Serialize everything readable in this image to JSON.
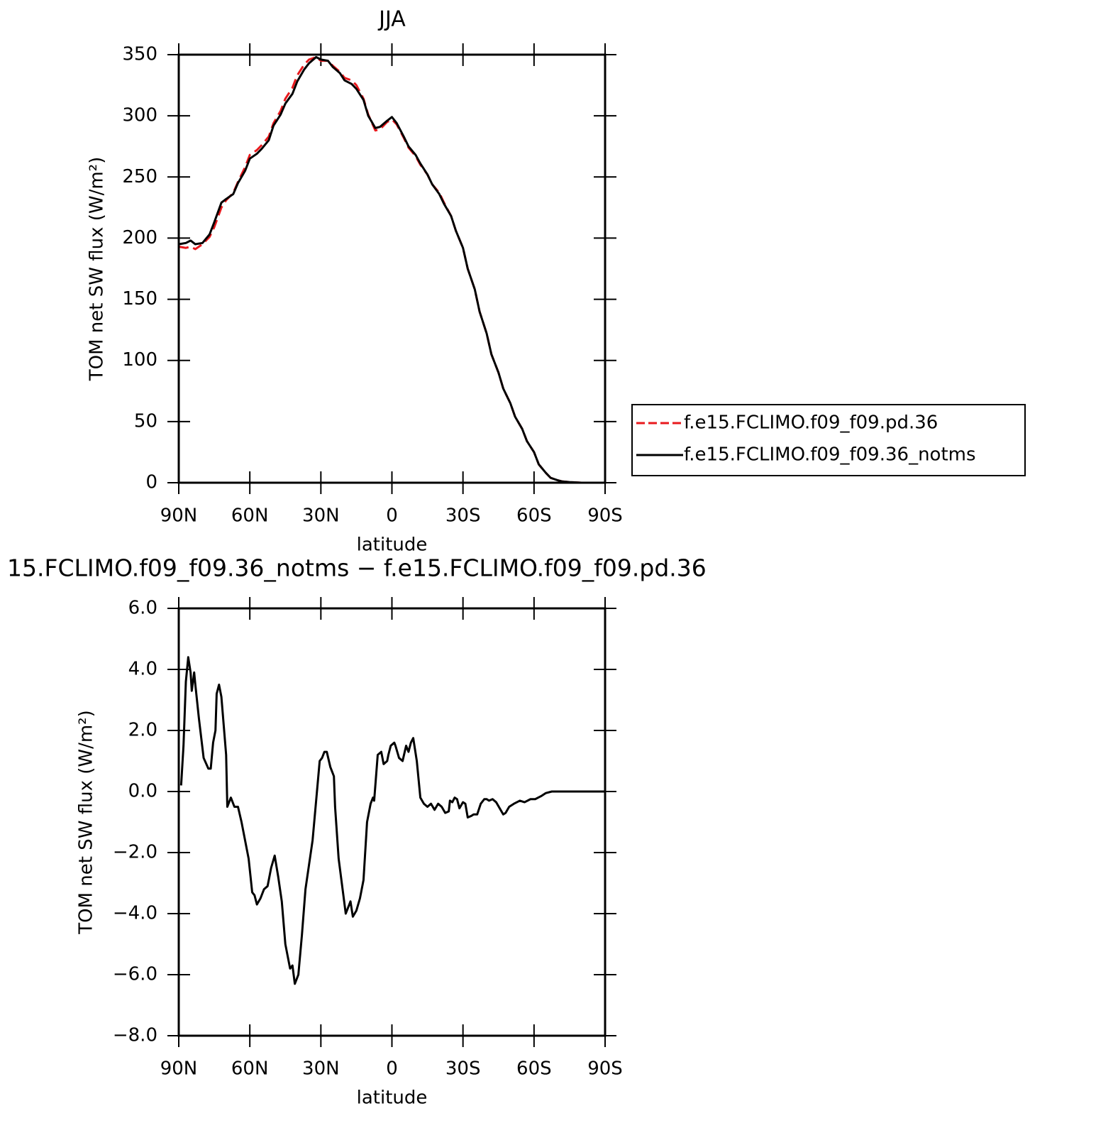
{
  "chart_data": [
    {
      "type": "line",
      "title": "JJA",
      "xlabel": "latitude",
      "ylabel": "TOM net SW flux (W/m²)",
      "xlim": [
        90,
        -90
      ],
      "xticks": [
        {
          "value": 90,
          "label": "90N"
        },
        {
          "value": 60,
          "label": "60N"
        },
        {
          "value": 30,
          "label": "30N"
        },
        0,
        {
          "value": -30,
          "label": "30S"
        },
        {
          "value": -60,
          "label": "60S"
        },
        {
          "value": -90,
          "label": "90S"
        }
      ],
      "ylim": [
        0,
        350
      ],
      "yticks": [
        0,
        50,
        100,
        150,
        200,
        250,
        300,
        350
      ],
      "legend": "right",
      "x": [
        90,
        87,
        85,
        83,
        80,
        77,
        75,
        72,
        70,
        67,
        65,
        62,
        60,
        57,
        55,
        52,
        50,
        47,
        45,
        42,
        40,
        37,
        35,
        32,
        30,
        27,
        25,
        22,
        20,
        17,
        15,
        12,
        10,
        7,
        5,
        2,
        0,
        -2,
        -5,
        -7,
        -10,
        -12,
        -15,
        -17,
        -20,
        -22,
        -25,
        -27,
        -30,
        -32,
        -35,
        -37,
        -40,
        -42,
        -45,
        -47,
        -50,
        -52,
        -55,
        -57,
        -60,
        -62,
        -65,
        -67,
        -70,
        -72,
        -75,
        -80,
        -85,
        -90
      ],
      "series": [
        {
          "name": "f.e15.FCLIMO.f09_f09.pd.36",
          "color": "#e8191d",
          "line_style": "dashed",
          "values": [
            193,
            192,
            193,
            191,
            195,
            201,
            209,
            225,
            231,
            237,
            246,
            258,
            268,
            272,
            276,
            283,
            294,
            304,
            314,
            323,
            333,
            342,
            346,
            348,
            345,
            345,
            341,
            336,
            331,
            329,
            325,
            314,
            301,
            288,
            289,
            295,
            297,
            293,
            282,
            274,
            267,
            260,
            252,
            244,
            237,
            229,
            218,
            206,
            192,
            175,
            158,
            140,
            122,
            105,
            90,
            77,
            65,
            54,
            44,
            34,
            25,
            15,
            8,
            4,
            2,
            1,
            0.5,
            0,
            0,
            0
          ]
        },
        {
          "name": "f.e15.FCLIMO.f09_f09.36_notms",
          "color": "#000000",
          "line_style": "solid",
          "values": [
            195,
            196,
            198,
            195,
            196,
            203,
            213,
            229,
            232,
            236,
            245,
            255,
            265,
            269,
            273,
            280,
            292,
            301,
            310,
            318,
            328,
            338,
            343,
            348,
            346,
            345,
            340,
            335,
            329,
            326,
            322,
            313,
            300,
            290,
            291,
            296,
            299,
            294,
            283,
            275,
            268,
            261,
            252,
            244,
            236,
            228,
            218,
            206,
            192,
            175,
            158,
            140,
            122,
            105,
            90,
            77,
            65,
            54,
            44,
            34,
            25,
            15,
            8,
            4,
            2,
            1,
            0.5,
            0,
            0,
            0
          ]
        }
      ]
    },
    {
      "type": "line",
      "title": "15.FCLIMO.f09_f09.36_notms − f.e15.FCLIMO.f09_f09.pd.36",
      "xlabel": "latitude",
      "ylabel": "TOM net SW flux (W/m²)",
      "xlim": [
        90,
        -90
      ],
      "xticks": [
        {
          "value": 90,
          "label": "90N"
        },
        {
          "value": 60,
          "label": "60N"
        },
        {
          "value": 30,
          "label": "30N"
        },
        0,
        {
          "value": -30,
          "label": "30S"
        },
        {
          "value": -60,
          "label": "60S"
        },
        {
          "value": -90,
          "label": "90S"
        }
      ],
      "ylim": [
        -8,
        6
      ],
      "yticks": [
        {
          "value": -8,
          "label": "−8.0"
        },
        {
          "value": -6,
          "label": "−6.0"
        },
        {
          "value": -4,
          "label": "−4.0"
        },
        {
          "value": -2,
          "label": "−2.0"
        },
        {
          "value": 0,
          "label": "0.0"
        },
        {
          "value": 2,
          "label": "2.0"
        },
        {
          "value": 4,
          "label": "4.0"
        },
        {
          "value": 6,
          "label": "6.0"
        }
      ],
      "x": [
        89,
        88,
        87,
        86,
        85,
        84.5,
        83.5,
        83,
        81.5,
        79.5,
        77.5,
        76.5,
        75.5,
        74.5,
        74,
        73,
        72,
        70,
        69.5,
        68,
        66.5,
        65,
        63.5,
        62,
        60.5,
        59,
        58,
        57,
        55.5,
        54,
        52.5,
        51,
        49.5,
        48,
        46.5,
        45,
        43,
        42,
        41,
        39.5,
        38,
        36.5,
        35,
        33.5,
        32,
        30.5,
        29.5,
        28.5,
        27.5,
        26,
        24.5,
        24,
        22.5,
        20,
        19.5,
        18.5,
        17.5,
        16.5,
        15,
        13.5,
        12,
        10.5,
        9,
        8,
        7.5,
        6.5,
        6,
        4.5,
        3.5,
        2,
        1.5,
        0.5,
        -1,
        -1.5,
        -3,
        -4.5,
        -6,
        -7,
        -8,
        -9,
        -10.5,
        -12,
        -13.5,
        -15,
        -16.5,
        -18,
        -19.5,
        -21,
        -22.5,
        -24,
        -24.5,
        -25.5,
        -26.5,
        -27.5,
        -28.5,
        -30,
        -31,
        -32,
        -33.5,
        -34.5,
        -36,
        -37.5,
        -39,
        -40,
        -41,
        -42.5,
        -44,
        -45.5,
        -47,
        -48,
        -49.5,
        -51.5,
        -54,
        -56,
        -58.5,
        -60.5,
        -63,
        -65,
        -67.5,
        -75,
        -85,
        -90
      ],
      "series": [
        {
          "color": "#000000",
          "line_style": "solid",
          "values": [
            0.2,
            1.5,
            3.6,
            4.4,
            3.9,
            3.3,
            3.9,
            3.5,
            2.4,
            1.1,
            0.75,
            0.75,
            1.6,
            2.0,
            3.2,
            3.5,
            3.1,
            1.2,
            -0.5,
            -0.2,
            -0.5,
            -0.5,
            -1.0,
            -1.6,
            -2.2,
            -3.3,
            -3.4,
            -3.7,
            -3.5,
            -3.2,
            -3.1,
            -2.5,
            -2.1,
            -2.8,
            -3.6,
            -5.0,
            -5.8,
            -5.7,
            -6.3,
            -6.0,
            -4.7,
            -3.2,
            -2.4,
            -1.6,
            -0.3,
            1.0,
            1.1,
            1.3,
            1.3,
            0.8,
            0.5,
            -0.5,
            -2.2,
            -3.7,
            -4.0,
            -3.8,
            -3.6,
            -4.1,
            -3.9,
            -3.5,
            -2.9,
            -1.0,
            -0.4,
            -0.2,
            -0.3,
            0.7,
            1.2,
            1.3,
            0.9,
            1.0,
            1.2,
            1.5,
            1.6,
            1.5,
            1.1,
            1.0,
            1.5,
            1.3,
            1.6,
            1.75,
            1.0,
            -0.2,
            -0.4,
            -0.5,
            -0.4,
            -0.6,
            -0.4,
            -0.5,
            -0.7,
            -0.65,
            -0.3,
            -0.35,
            -0.2,
            -0.25,
            -0.55,
            -0.35,
            -0.4,
            -0.85,
            -0.8,
            -0.75,
            -0.75,
            -0.4,
            -0.25,
            -0.25,
            -0.3,
            -0.25,
            -0.35,
            -0.55,
            -0.75,
            -0.7,
            -0.5,
            -0.4,
            -0.3,
            -0.35,
            -0.25,
            -0.25,
            -0.15,
            -0.05,
            0,
            0,
            0,
            0
          ]
        }
      ]
    }
  ]
}
